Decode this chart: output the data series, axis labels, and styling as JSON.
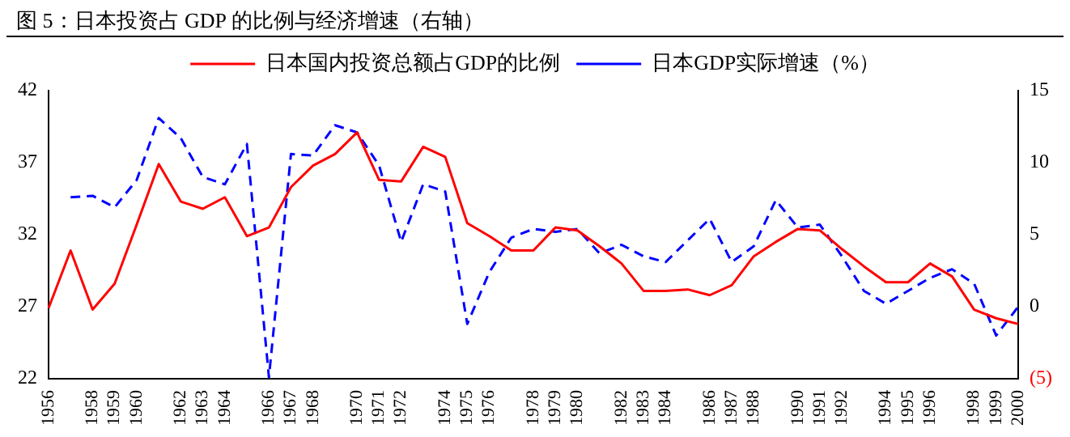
{
  "chart_data": {
    "type": "line",
    "title": "图 5：日本投资占 GDP 的比例与经济增速（右轴）",
    "categories": [
      "1956",
      null,
      "1958",
      "1959",
      "1960",
      null,
      "1962",
      "1963",
      "1964",
      null,
      "1966",
      "1967",
      "1968",
      null,
      "1970",
      "1971",
      "1972",
      null,
      "1974",
      "1975",
      "1976",
      null,
      "1978",
      "1979",
      "1980",
      null,
      "1982",
      "1983",
      "1984",
      null,
      "1986",
      "1987",
      "1988",
      null,
      "1990",
      "1991",
      "1992",
      null,
      "1994",
      "1995",
      "1996",
      null,
      "1998",
      "1999",
      "2000"
    ],
    "series": [
      {
        "name": "日本国内投资总额占GDP的比例",
        "color": "#ff0000",
        "line_style": "solid",
        "values": [
          26.9,
          30.9,
          26.8,
          28.6,
          32.7,
          36.9,
          34.3,
          33.8,
          34.6,
          31.9,
          32.5,
          35.3,
          36.8,
          37.6,
          39.1,
          35.8,
          35.7,
          38.1,
          37.4,
          32.8,
          31.9,
          30.9,
          30.9,
          32.5,
          32.3,
          31.2,
          30.0,
          28.1,
          28.1,
          28.2,
          27.8,
          28.5,
          30.5,
          31.5,
          32.4,
          32.3,
          31.0,
          29.8,
          28.7,
          28.7,
          30.0,
          29.1,
          26.8,
          26.2,
          25.8
        ]
      },
      {
        "name": "日本GDP实际增速（%）",
        "color": "#0000ff",
        "line_style": "dashed",
        "axis": "y2",
        "values": [
          null,
          7.6,
          7.7,
          6.9,
          8.8,
          13.1,
          11.7,
          9.0,
          8.5,
          11.3,
          -4.9,
          10.6,
          10.5,
          12.6,
          12.1,
          9.8,
          4.5,
          8.5,
          8.0,
          -1.2,
          2.4,
          4.8,
          5.4,
          5.2,
          5.4,
          3.7,
          4.3,
          3.5,
          3.1,
          4.6,
          6.1,
          3.1,
          4.2,
          7.4,
          5.5,
          5.7,
          3.5,
          1.1,
          0.2,
          1.1,
          2.0,
          2.6,
          1.6,
          -2.0,
          0.0
        ]
      }
    ],
    "ylim": [
      22,
      42
    ],
    "yticks": [
      22,
      27,
      32,
      37,
      42
    ],
    "y2lim": [
      -5,
      15
    ],
    "y2ticks": [
      {
        "value": -5,
        "label": "(5)"
      },
      0,
      5,
      10,
      15
    ],
    "grid": false,
    "legend": "top",
    "marker": "none"
  }
}
